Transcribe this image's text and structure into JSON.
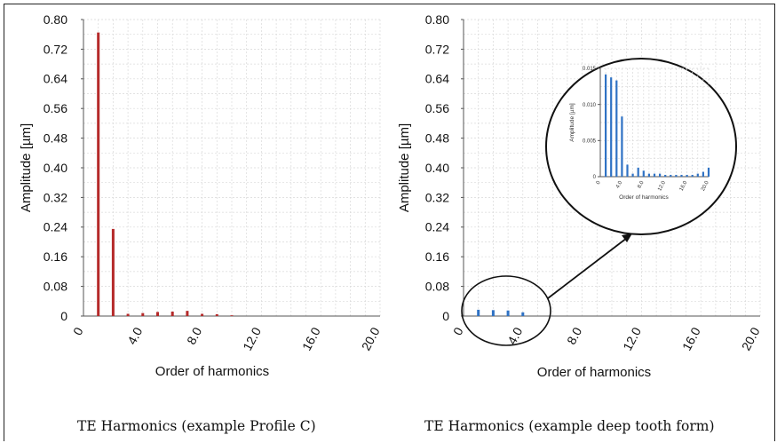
{
  "colors": {
    "left_bars": "#b52a2a",
    "right_bars": "#2f72c4",
    "inset_bars": "#2f72c4",
    "grid": "#d9d9d9"
  },
  "captions": {
    "left": "TE Harmonics (example Profile C)",
    "right": "TE Harmonics (example deep tooth form)"
  },
  "chart_data": [
    {
      "type": "bar",
      "xlabel": "Order of harmonics",
      "ylabel": "Amplitude [µm]",
      "xlim": [
        0,
        20
      ],
      "ylim": [
        0,
        0.8
      ],
      "x_ticks": [
        "0",
        "4.0",
        "8.0",
        "12.0",
        "16.0",
        "20.0"
      ],
      "y_ticks": [
        "0",
        "0.08",
        "0.16",
        "0.24",
        "0.32",
        "0.40",
        "0.48",
        "0.56",
        "0.64",
        "0.72",
        "0.80"
      ],
      "x": [
        1,
        2,
        3,
        4,
        5,
        6,
        7,
        8,
        9,
        10
      ],
      "values": [
        0.765,
        0.235,
        0.006,
        0.008,
        0.011,
        0.012,
        0.014,
        0.006,
        0.005,
        0.002
      ],
      "grid": true
    },
    {
      "type": "bar",
      "xlabel": "Order of harmonics",
      "ylabel": "Amplitude [µm]",
      "xlim": [
        0,
        20
      ],
      "ylim": [
        0,
        0.8
      ],
      "x_ticks": [
        "0",
        "4.0",
        "8.0",
        "12.0",
        "16.0",
        "20.0"
      ],
      "y_ticks": [
        "0",
        "0.08",
        "0.16",
        "0.24",
        "0.32",
        "0.40",
        "0.48",
        "0.56",
        "0.64",
        "0.72",
        "0.80"
      ],
      "x": [
        1,
        2,
        3,
        4
      ],
      "values": [
        0.017,
        0.016,
        0.015,
        0.01
      ],
      "grid": true,
      "annotation": "circled low-amplitude region magnified in inset"
    },
    {
      "type": "bar",
      "xlabel": "Order of harmonics",
      "ylabel": "Amplitude [µm]",
      "xlim": [
        0,
        20
      ],
      "ylim": [
        0,
        0.018
      ],
      "x_ticks": [
        "0",
        "4.0",
        "8.0",
        "12.0",
        "16.0",
        "20.0"
      ],
      "y_ticks": [
        "0",
        "0.005",
        "0.010",
        "0.015"
      ],
      "x": [
        1,
        2,
        3,
        4,
        5,
        6,
        7,
        8,
        9,
        10,
        11,
        12,
        13,
        14,
        15,
        16,
        17,
        18,
        19,
        20
      ],
      "values": [
        0.017,
        0.0165,
        0.016,
        0.01,
        0.002,
        0.0005,
        0.0015,
        0.001,
        0.0005,
        0.0005,
        0.0005,
        0.0003,
        0.0003,
        0.0003,
        0.0003,
        0.0003,
        0.0003,
        0.0005,
        0.0008,
        0.0015
      ],
      "grid": true
    }
  ]
}
